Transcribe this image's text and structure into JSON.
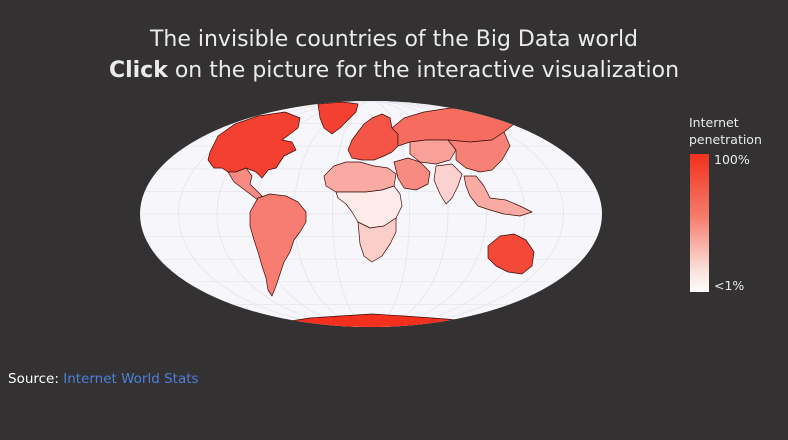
{
  "title": {
    "line1": "The invisible countries of the Big Data world",
    "line2_bold": "Click",
    "line2_rest": " on the picture for the interactive visualization"
  },
  "legend": {
    "title": "Internet penetration",
    "max_label": "100%",
    "min_label": "<1%",
    "color_high": "#f3301e",
    "color_low": "#fdfbfb"
  },
  "source": {
    "label": "Source: ",
    "link_text": "Internet World Stats"
  },
  "colors": {
    "background": "#333131",
    "ocean": "#f7f6fb",
    "graticule": "#e6e5ec",
    "border": "#3a0c08",
    "link": "#4d7fdc"
  },
  "map": {
    "projection": "mollweide",
    "regions": [
      {
        "name": "North America",
        "level": 0.92
      },
      {
        "name": "Greenland",
        "level": 0.92
      },
      {
        "name": "Central America",
        "level": 0.55
      },
      {
        "name": "South America",
        "level": 0.62
      },
      {
        "name": "Europe",
        "level": 0.82
      },
      {
        "name": "Russia",
        "level": 0.7
      },
      {
        "name": "North Africa",
        "level": 0.4
      },
      {
        "name": "Central Africa",
        "level": 0.08
      },
      {
        "name": "Southern Africa",
        "level": 0.22
      },
      {
        "name": "Middle East",
        "level": 0.55
      },
      {
        "name": "Central Asia",
        "level": 0.45
      },
      {
        "name": "South Asia",
        "level": 0.2
      },
      {
        "name": "East Asia",
        "level": 0.6
      },
      {
        "name": "Southeast Asia",
        "level": 0.4
      },
      {
        "name": "Australia",
        "level": 0.88
      },
      {
        "name": "Antarctica",
        "level": 1.0
      }
    ]
  }
}
